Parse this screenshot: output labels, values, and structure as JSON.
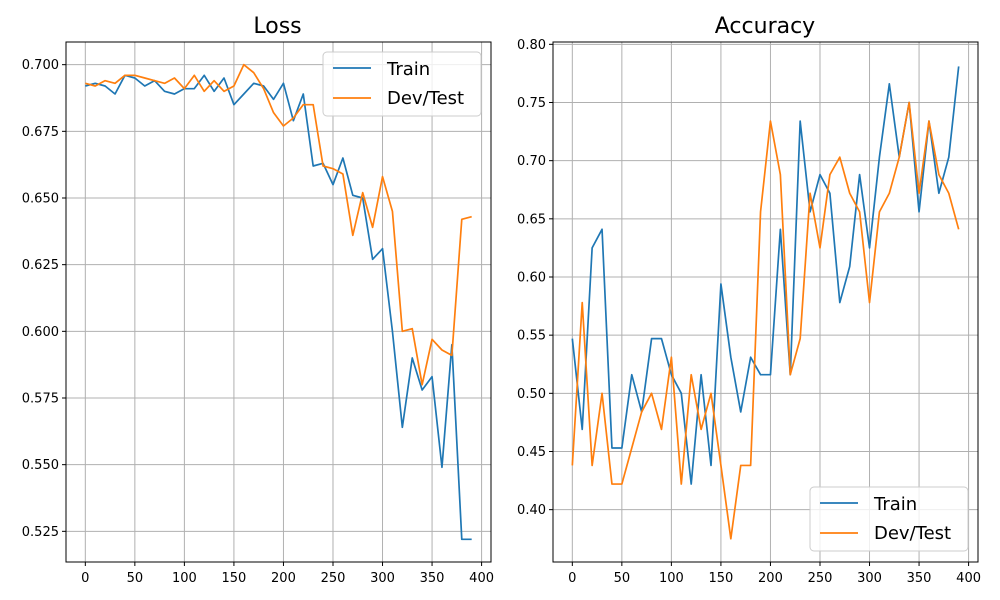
{
  "chart_data": [
    {
      "type": "line",
      "title": "Loss",
      "xlabel": "",
      "ylabel": "",
      "xlim": [
        -19.5,
        409.5
      ],
      "ylim": [
        0.5135,
        0.7085
      ],
      "xticks": [
        0,
        50,
        100,
        150,
        200,
        250,
        300,
        350,
        400
      ],
      "yticks": [
        0.525,
        0.55,
        0.575,
        0.6,
        0.625,
        0.65,
        0.675,
        0.7
      ],
      "ytick_labels": [
        "0.525",
        "0.550",
        "0.575",
        "0.600",
        "0.625",
        "0.650",
        "0.675",
        "0.700"
      ],
      "grid": true,
      "legend_position": "top-right",
      "x": [
        0,
        10,
        20,
        30,
        40,
        50,
        60,
        70,
        80,
        90,
        100,
        110,
        120,
        130,
        140,
        150,
        160,
        170,
        180,
        190,
        200,
        210,
        220,
        230,
        240,
        250,
        260,
        270,
        280,
        290,
        300,
        310,
        320,
        330,
        340,
        350,
        360,
        370,
        380,
        390
      ],
      "series": [
        {
          "name": "Train",
          "color": "#1f77b4",
          "values": [
            0.692,
            0.693,
            0.692,
            0.689,
            0.696,
            0.695,
            0.692,
            0.694,
            0.69,
            0.689,
            0.691,
            0.691,
            0.696,
            0.69,
            0.695,
            0.685,
            0.689,
            0.693,
            0.692,
            0.687,
            0.693,
            0.679,
            0.689,
            0.662,
            0.663,
            0.655,
            0.665,
            0.651,
            0.65,
            0.627,
            0.631,
            0.6,
            0.564,
            0.59,
            0.578,
            0.583,
            0.549,
            0.595,
            0.522,
            0.522
          ]
        },
        {
          "name": "Dev/Test",
          "color": "#ff7f0e",
          "values": [
            0.693,
            0.692,
            0.694,
            0.693,
            0.696,
            0.696,
            0.695,
            0.694,
            0.693,
            0.695,
            0.691,
            0.696,
            0.69,
            0.694,
            0.69,
            0.692,
            0.7,
            0.697,
            0.691,
            0.682,
            0.677,
            0.68,
            0.685,
            0.685,
            0.662,
            0.661,
            0.659,
            0.636,
            0.652,
            0.639,
            0.658,
            0.645,
            0.6,
            0.601,
            0.58,
            0.597,
            0.593,
            0.591,
            0.642,
            0.643
          ]
        }
      ]
    },
    {
      "type": "line",
      "title": "Accuracy",
      "xlabel": "",
      "ylabel": "",
      "xlim": [
        -19.5,
        409.5
      ],
      "ylim": [
        0.355,
        0.802
      ],
      "xticks": [
        0,
        50,
        100,
        150,
        200,
        250,
        300,
        350,
        400
      ],
      "yticks": [
        0.4,
        0.45,
        0.5,
        0.55,
        0.6,
        0.65,
        0.7,
        0.75,
        0.8
      ],
      "ytick_labels": [
        "0.40",
        "0.45",
        "0.50",
        "0.55",
        "0.60",
        "0.65",
        "0.70",
        "0.75",
        "0.80"
      ],
      "grid": true,
      "legend_position": "bottom-right",
      "x": [
        0,
        10,
        20,
        30,
        40,
        50,
        60,
        70,
        80,
        90,
        100,
        110,
        120,
        130,
        140,
        150,
        160,
        170,
        180,
        190,
        200,
        210,
        220,
        230,
        240,
        250,
        260,
        270,
        280,
        290,
        300,
        310,
        320,
        330,
        340,
        350,
        360,
        370,
        380,
        390
      ],
      "series": [
        {
          "name": "Train",
          "color": "#1f77b4",
          "values": [
            0.547,
            0.469,
            0.625,
            0.641,
            0.453,
            0.453,
            0.516,
            0.484,
            0.547,
            0.547,
            0.516,
            0.5,
            0.422,
            0.516,
            0.438,
            0.594,
            0.531,
            0.484,
            0.531,
            0.516,
            0.516,
            0.641,
            0.516,
            0.734,
            0.656,
            0.688,
            0.672,
            0.578,
            0.609,
            0.688,
            0.625,
            0.703,
            0.766,
            0.703,
            0.75,
            0.656,
            0.734,
            0.672,
            0.703,
            0.781
          ]
        },
        {
          "name": "Dev/Test",
          "color": "#ff7f0e",
          "values": [
            0.438,
            0.578,
            0.438,
            0.5,
            0.422,
            0.422,
            0.453,
            0.484,
            0.5,
            0.469,
            0.531,
            0.422,
            0.516,
            0.469,
            0.5,
            0.438,
            0.375,
            0.438,
            0.438,
            0.656,
            0.734,
            0.688,
            0.516,
            0.547,
            0.672,
            0.625,
            0.688,
            0.703,
            0.672,
            0.656,
            0.578,
            0.656,
            0.672,
            0.703,
            0.75,
            0.672,
            0.734,
            0.688,
            0.672,
            0.641
          ]
        }
      ]
    }
  ]
}
